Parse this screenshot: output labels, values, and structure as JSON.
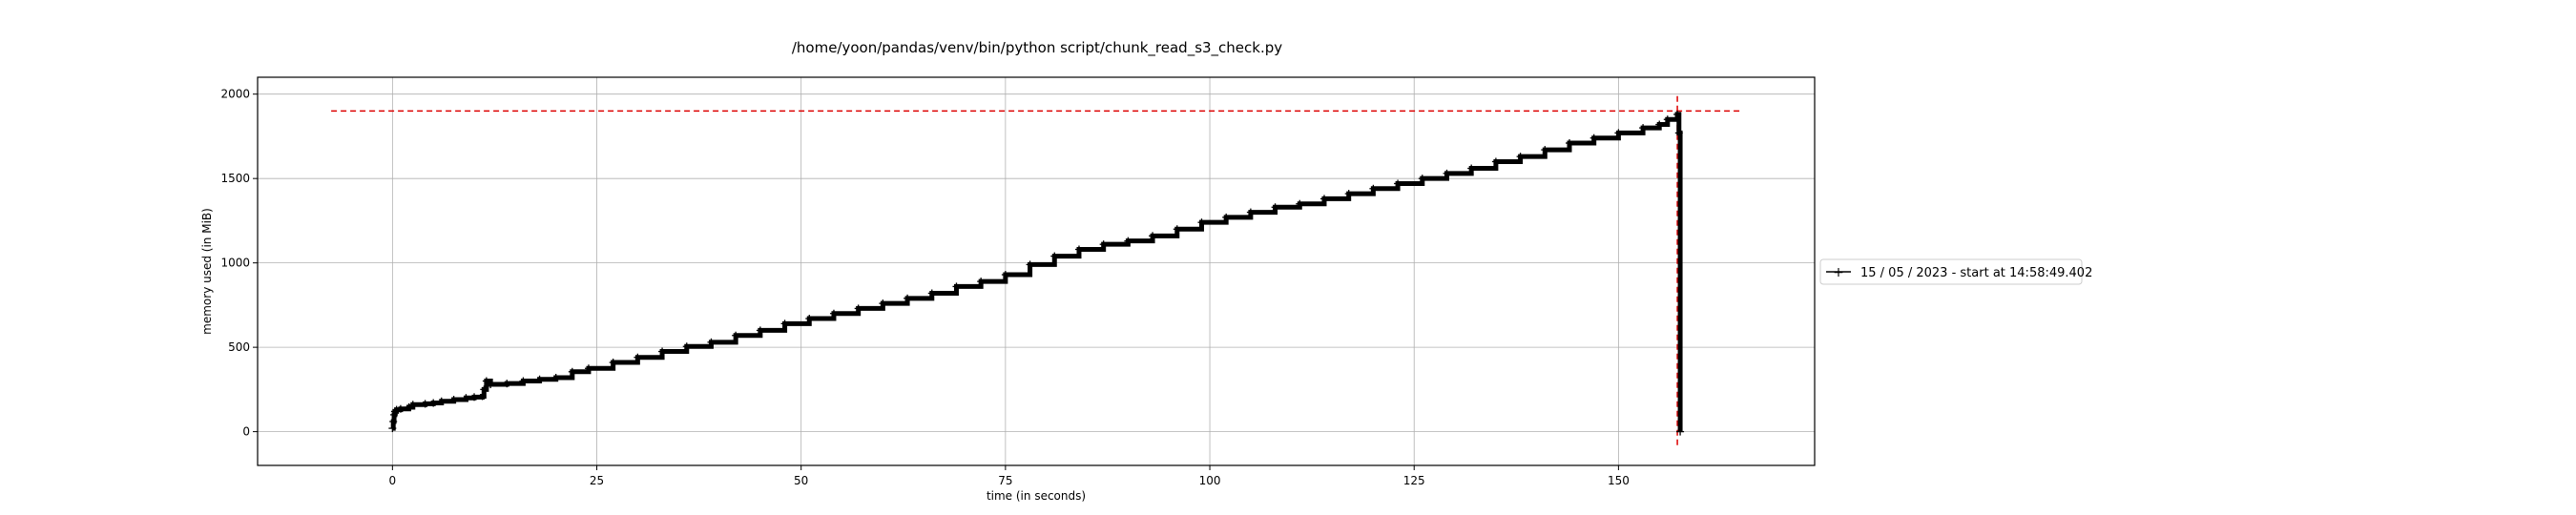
{
  "chart_data": {
    "type": "line",
    "title": "/home/yoon/pandas/venv/bin/python script/chunk_read_s3_check.py",
    "xlabel": "time (in seconds)",
    "ylabel": "memory used (in MiB)",
    "xlim": [
      -16.5,
      174
    ],
    "ylim": [
      -200,
      2100
    ],
    "x_ticks": [
      0,
      25,
      50,
      75,
      100,
      125,
      150
    ],
    "y_ticks": [
      0,
      500,
      1000,
      1500,
      2000
    ],
    "grid": true,
    "legend_position": "outside-right",
    "series": [
      {
        "name": "15 / 05 / 2023 - start at 14:58:49.402",
        "color": "#000000",
        "marker": "+",
        "x": [
          0,
          0.1,
          0.2,
          0.3,
          0.5,
          1,
          2,
          2.5,
          4,
          5,
          6,
          7.5,
          9,
          10,
          11,
          11.2,
          11.5,
          12,
          14,
          16,
          18,
          20,
          22,
          24,
          27,
          30,
          33,
          36,
          39,
          42,
          45,
          48,
          51,
          54,
          57,
          60,
          63,
          66,
          69,
          72,
          75,
          78,
          81,
          84,
          87,
          90,
          93,
          96,
          99,
          102,
          105,
          108,
          111,
          114,
          117,
          120,
          123,
          126,
          129,
          132,
          135,
          138,
          141,
          144,
          147,
          150,
          153,
          155,
          156,
          157.2,
          157.4,
          157.55
        ],
        "values": [
          20,
          60,
          100,
          120,
          130,
          135,
          145,
          160,
          165,
          170,
          180,
          190,
          200,
          205,
          210,
          250,
          300,
          280,
          285,
          300,
          310,
          320,
          355,
          375,
          410,
          440,
          475,
          505,
          530,
          570,
          600,
          640,
          670,
          700,
          730,
          760,
          790,
          820,
          860,
          890,
          930,
          990,
          1040,
          1080,
          1110,
          1130,
          1160,
          1200,
          1240,
          1270,
          1300,
          1330,
          1350,
          1380,
          1410,
          1440,
          1470,
          1500,
          1530,
          1560,
          1600,
          1630,
          1670,
          1710,
          1740,
          1770,
          1800,
          1820,
          1850,
          1880,
          1770,
          0
        ]
      }
    ],
    "markers": {
      "peak_memory_mib": 1900,
      "peak_time_s": 157.2,
      "h_line_xrange": [
        -7.5,
        165
      ],
      "v_line_yrange": [
        -80,
        1990
      ],
      "color": "#dd0000"
    }
  }
}
